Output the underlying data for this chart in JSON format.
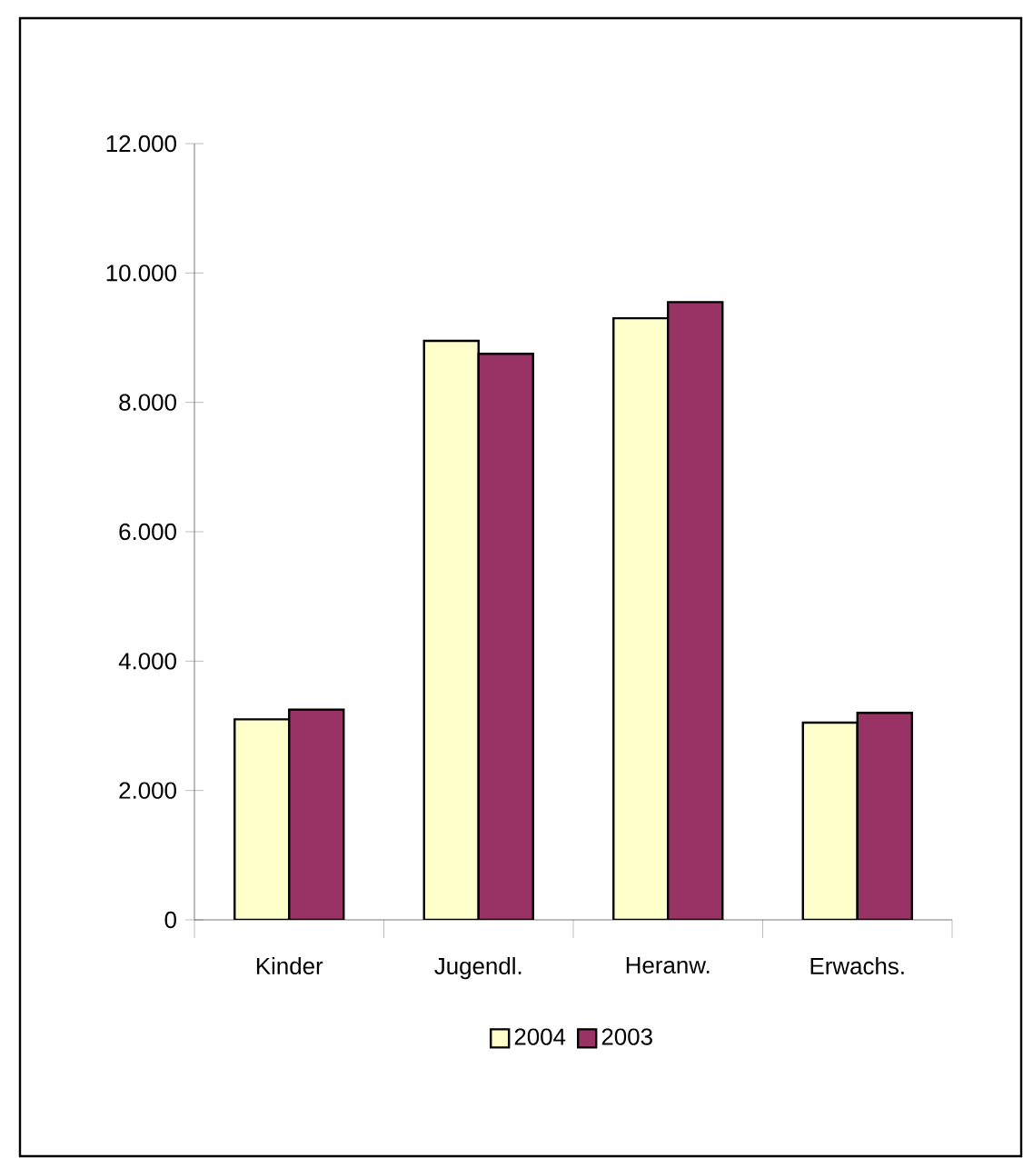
{
  "chart_data": {
    "type": "bar",
    "categories": [
      "Kinder",
      "Jugendl.",
      "Heranw.",
      "Erwachs."
    ],
    "series": [
      {
        "name": "2004",
        "color": "#ffffcc",
        "values": [
          3100,
          8950,
          9300,
          3050
        ]
      },
      {
        "name": "2003",
        "color": "#993366",
        "values": [
          3250,
          8750,
          9550,
          3200
        ]
      }
    ],
    "ylim": [
      0,
      12000
    ],
    "yticks": [
      0,
      {
        "value": 2000,
        "label": "2.000"
      },
      {
        "value": 4000,
        "label": "4.000"
      },
      {
        "value": 6000,
        "label": "6.000"
      },
      {
        "value": 8000,
        "label": "8.000"
      },
      {
        "value": 10000,
        "label": "10.000"
      },
      {
        "value": 12000,
        "label": "12.000"
      }
    ],
    "legend": "bottom"
  }
}
